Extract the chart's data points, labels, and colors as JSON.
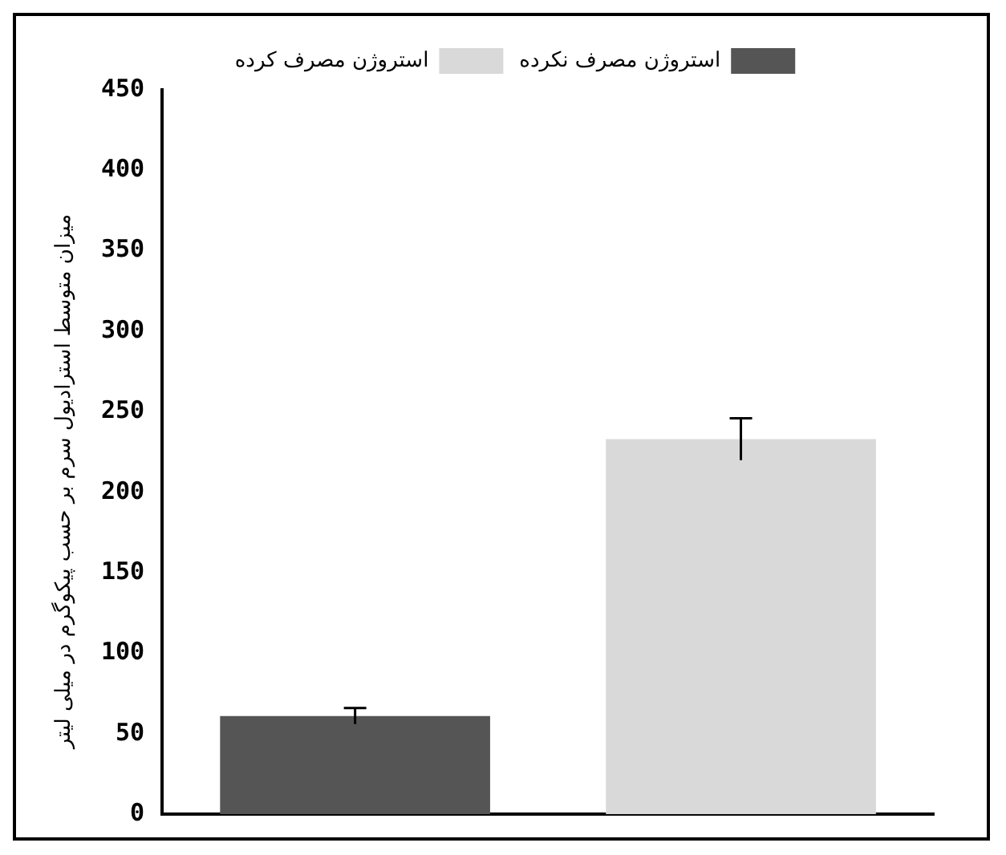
{
  "chart_data": {
    "type": "bar",
    "ylabel": "میزان متوسط استرادیول سرم بر حسب پیکوگرم در میلی لیتر",
    "categories": [
      null,
      null
    ],
    "series": [
      {
        "name": "استروژن مصرف نکرده",
        "color": "#555555",
        "values": [
          61,
          null
        ],
        "errors": [
          5,
          null
        ]
      },
      {
        "name": "استروژن مصرف کرده",
        "color": "#d9d9d9",
        "values": [
          null,
          233
        ],
        "errors": [
          null,
          13
        ]
      }
    ],
    "ylim": [
      0,
      450
    ],
    "yticks": [
      0,
      50,
      100,
      150,
      200,
      250,
      300,
      350,
      400,
      450
    ],
    "grid": false,
    "legend": "top"
  }
}
